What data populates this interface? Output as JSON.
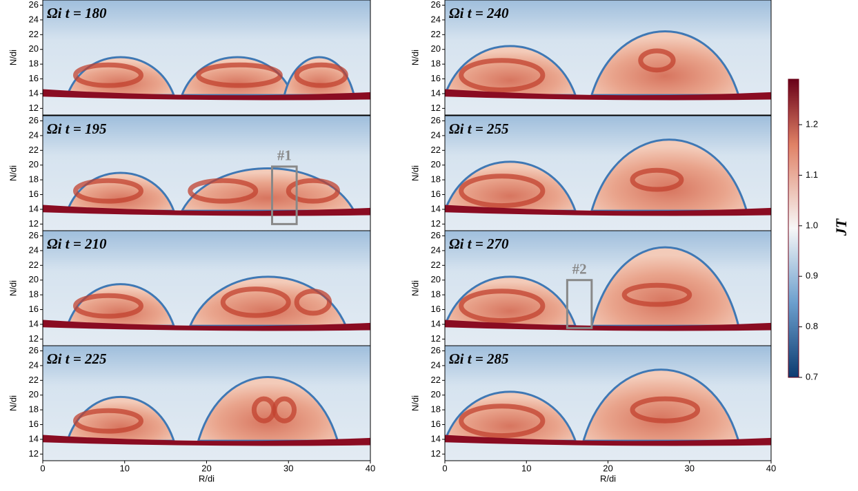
{
  "chart_data": [
    {
      "type": "heatmap",
      "title": "Ωi t = 180",
      "ylabel": "N/di",
      "xlim": [
        0,
        40
      ],
      "ylim": [
        11.1,
        26.7
      ],
      "yticks": [
        12,
        14,
        16,
        18,
        20,
        22,
        24,
        26
      ]
    },
    {
      "type": "heatmap",
      "title": "Ωi t = 195",
      "ylabel": "N/di",
      "xlim": [
        0,
        40
      ],
      "ylim": [
        11.1,
        26.7
      ],
      "yticks": [
        12,
        14,
        16,
        18,
        20,
        22,
        24,
        26
      ],
      "annotation": "#1"
    },
    {
      "type": "heatmap",
      "title": "Ωi t = 210",
      "ylabel": "N/di",
      "xlim": [
        0,
        40
      ],
      "ylim": [
        11.1,
        26.7
      ],
      "yticks": [
        12,
        14,
        16,
        18,
        20,
        22,
        24,
        26
      ]
    },
    {
      "type": "heatmap",
      "title": "Ωi t = 225",
      "ylabel": "N/di",
      "xlabel": "R/di",
      "xlim": [
        0,
        40
      ],
      "ylim": [
        11.1,
        26.7
      ],
      "xticks": [
        0,
        10,
        20,
        30,
        40
      ],
      "yticks": [
        12,
        14,
        16,
        18,
        20,
        22,
        24,
        26
      ]
    },
    {
      "type": "heatmap",
      "title": "Ωi t = 240",
      "ylabel": "N/di",
      "xlim": [
        0,
        40
      ],
      "ylim": [
        11.1,
        26.7
      ],
      "yticks": [
        12,
        14,
        16,
        18,
        20,
        22,
        24,
        26
      ]
    },
    {
      "type": "heatmap",
      "title": "Ωi t = 255",
      "ylabel": "N/di",
      "xlim": [
        0,
        40
      ],
      "ylim": [
        11.1,
        26.7
      ],
      "yticks": [
        12,
        14,
        16,
        18,
        20,
        22,
        24,
        26
      ]
    },
    {
      "type": "heatmap",
      "title": "Ωi t = 270",
      "ylabel": "N/di",
      "xlim": [
        0,
        40
      ],
      "ylim": [
        11.1,
        26.7
      ],
      "yticks": [
        12,
        14,
        16,
        18,
        20,
        22,
        24,
        26
      ],
      "annotation": "#2"
    },
    {
      "type": "heatmap",
      "title": "Ωi t = 285",
      "ylabel": "N/di",
      "xlabel": "R/di",
      "xlim": [
        0,
        40
      ],
      "ylim": [
        11.1,
        26.7
      ],
      "xticks": [
        0,
        10,
        20,
        30,
        40
      ],
      "yticks": [
        12,
        14,
        16,
        18,
        20,
        22,
        24,
        26
      ]
    },
    {
      "type": "colorbar",
      "label": "JT",
      "ylim": [
        0.7,
        1.29
      ],
      "yticks": [
        0.7,
        0.8,
        0.9,
        {
          "value": 1,
          "label": "1.0"
        },
        1.1,
        1.2
      ]
    }
  ]
}
